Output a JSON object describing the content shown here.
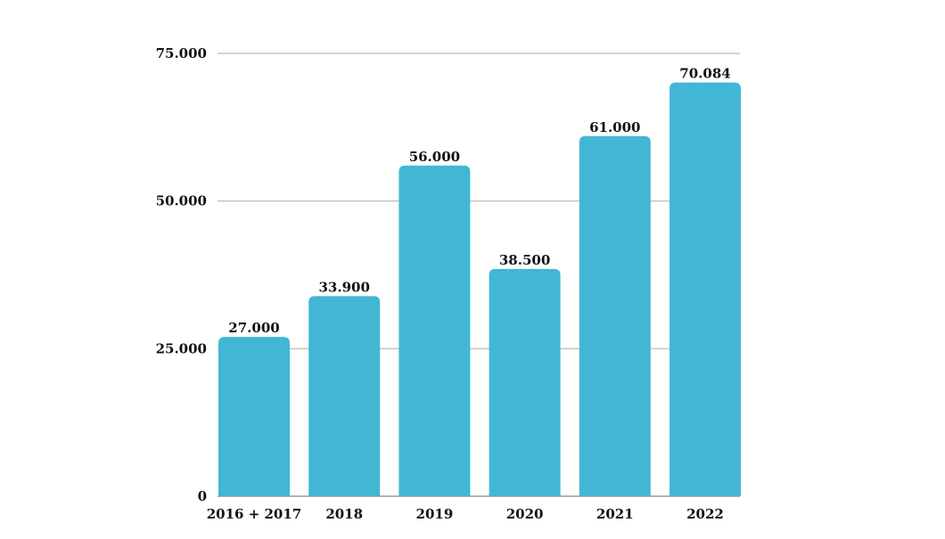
{
  "chart_data": {
    "type": "bar",
    "categories": [
      "2016 + 2017",
      "2018",
      "2019",
      "2020",
      "2021",
      "2022"
    ],
    "values": [
      27000,
      33900,
      56000,
      38500,
      61000,
      70084
    ],
    "value_labels": [
      "27.000",
      "33.900",
      "56.000",
      "38.500",
      "61.000",
      "70.084"
    ],
    "title": "",
    "xlabel": "",
    "ylabel": "",
    "ylim": [
      0,
      75000
    ],
    "yticks": [
      0,
      25000,
      50000,
      75000
    ],
    "ytick_labels": [
      "0",
      "25.000",
      "50.000",
      "75.000"
    ],
    "grid": true,
    "legend": "none",
    "bar_color": "#42b6d5"
  }
}
